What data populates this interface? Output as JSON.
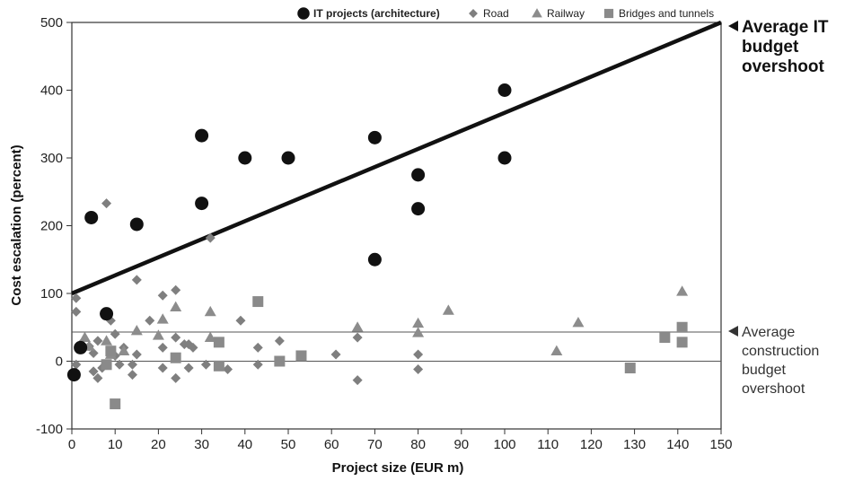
{
  "chart_data": {
    "type": "scatter",
    "title": "",
    "xlabel": "Project size (EUR m)",
    "ylabel": "Cost escalation (percent)",
    "xlim": [
      0,
      150
    ],
    "ylim": [
      -100,
      500
    ],
    "x_ticks": [
      0,
      10,
      20,
      30,
      40,
      50,
      60,
      70,
      80,
      90,
      100,
      110,
      120,
      130,
      140,
      150
    ],
    "y_ticks": [
      -100,
      0,
      100,
      200,
      300,
      400,
      500
    ],
    "grid": false,
    "legend_position": "top-right",
    "series": [
      {
        "name": "IT projects (architecture)",
        "marker": "circle",
        "color": "#111111",
        "points": [
          [
            0.5,
            -20
          ],
          [
            2,
            20
          ],
          [
            4.5,
            212
          ],
          [
            8,
            70
          ],
          [
            15,
            202
          ],
          [
            30,
            333
          ],
          [
            30,
            233
          ],
          [
            40,
            300
          ],
          [
            50,
            300
          ],
          [
            70,
            330
          ],
          [
            70,
            150
          ],
          [
            80,
            275
          ],
          [
            80,
            225
          ],
          [
            100,
            400
          ],
          [
            100,
            300
          ]
        ]
      },
      {
        "name": "Road",
        "marker": "diamond",
        "color": "#7f7f7f",
        "points": [
          [
            1,
            93
          ],
          [
            1,
            73
          ],
          [
            1,
            -5
          ],
          [
            2,
            25
          ],
          [
            4,
            22
          ],
          [
            5,
            12
          ],
          [
            5,
            -15
          ],
          [
            6,
            30
          ],
          [
            6,
            -25
          ],
          [
            7,
            -10
          ],
          [
            8,
            233
          ],
          [
            9,
            60
          ],
          [
            10,
            40
          ],
          [
            10,
            8
          ],
          [
            11,
            -5
          ],
          [
            12,
            20
          ],
          [
            14,
            -20
          ],
          [
            14,
            -5
          ],
          [
            15,
            120
          ],
          [
            15,
            10
          ],
          [
            18,
            60
          ],
          [
            21,
            97
          ],
          [
            21,
            20
          ],
          [
            21,
            -10
          ],
          [
            24,
            105
          ],
          [
            24,
            35
          ],
          [
            24,
            -25
          ],
          [
            26,
            25
          ],
          [
            27,
            -10
          ],
          [
            27,
            25
          ],
          [
            28,
            20
          ],
          [
            31,
            -5
          ],
          [
            32,
            182
          ],
          [
            36,
            -12
          ],
          [
            39,
            60
          ],
          [
            43,
            20
          ],
          [
            43,
            -5
          ],
          [
            48,
            30
          ],
          [
            61,
            10
          ],
          [
            66,
            35
          ],
          [
            66,
            -28
          ],
          [
            80,
            10
          ],
          [
            80,
            -12
          ]
        ]
      },
      {
        "name": "Railway",
        "marker": "triangle",
        "color": "#8c8c8c",
        "points": [
          [
            3,
            35
          ],
          [
            4,
            22
          ],
          [
            8,
            30
          ],
          [
            9,
            10
          ],
          [
            12,
            15
          ],
          [
            15,
            45
          ],
          [
            20,
            38
          ],
          [
            21,
            62
          ],
          [
            24,
            80
          ],
          [
            32,
            73
          ],
          [
            32,
            35
          ],
          [
            66,
            50
          ],
          [
            80,
            56
          ],
          [
            80,
            42
          ],
          [
            87,
            75
          ],
          [
            112,
            15
          ],
          [
            117,
            57
          ],
          [
            141,
            103
          ]
        ]
      },
      {
        "name": "Bridges and tunnels",
        "marker": "square",
        "color": "#8a8a8a",
        "points": [
          [
            8,
            -5
          ],
          [
            9,
            15
          ],
          [
            10,
            -63
          ],
          [
            24,
            5
          ],
          [
            34,
            28
          ],
          [
            34,
            -7
          ],
          [
            43,
            88
          ],
          [
            48,
            0
          ],
          [
            53,
            8
          ],
          [
            129,
            -10
          ],
          [
            137,
            35
          ],
          [
            141,
            50
          ],
          [
            141,
            28
          ]
        ]
      }
    ],
    "reference_lines": [
      {
        "type": "trend",
        "label": "Average IT budget overshoot",
        "from": [
          0,
          100
        ],
        "to": [
          150,
          500
        ]
      },
      {
        "type": "horizontal",
        "label": "Average construction budget overshoot",
        "y": 43
      },
      {
        "type": "horizontal",
        "label": "",
        "y": 0
      }
    ],
    "annotations": {
      "it_lines": [
        "Average IT",
        "budget",
        "overshoot"
      ],
      "construction_lines": [
        "Average",
        "construction",
        "budget",
        "overshoot"
      ]
    }
  }
}
